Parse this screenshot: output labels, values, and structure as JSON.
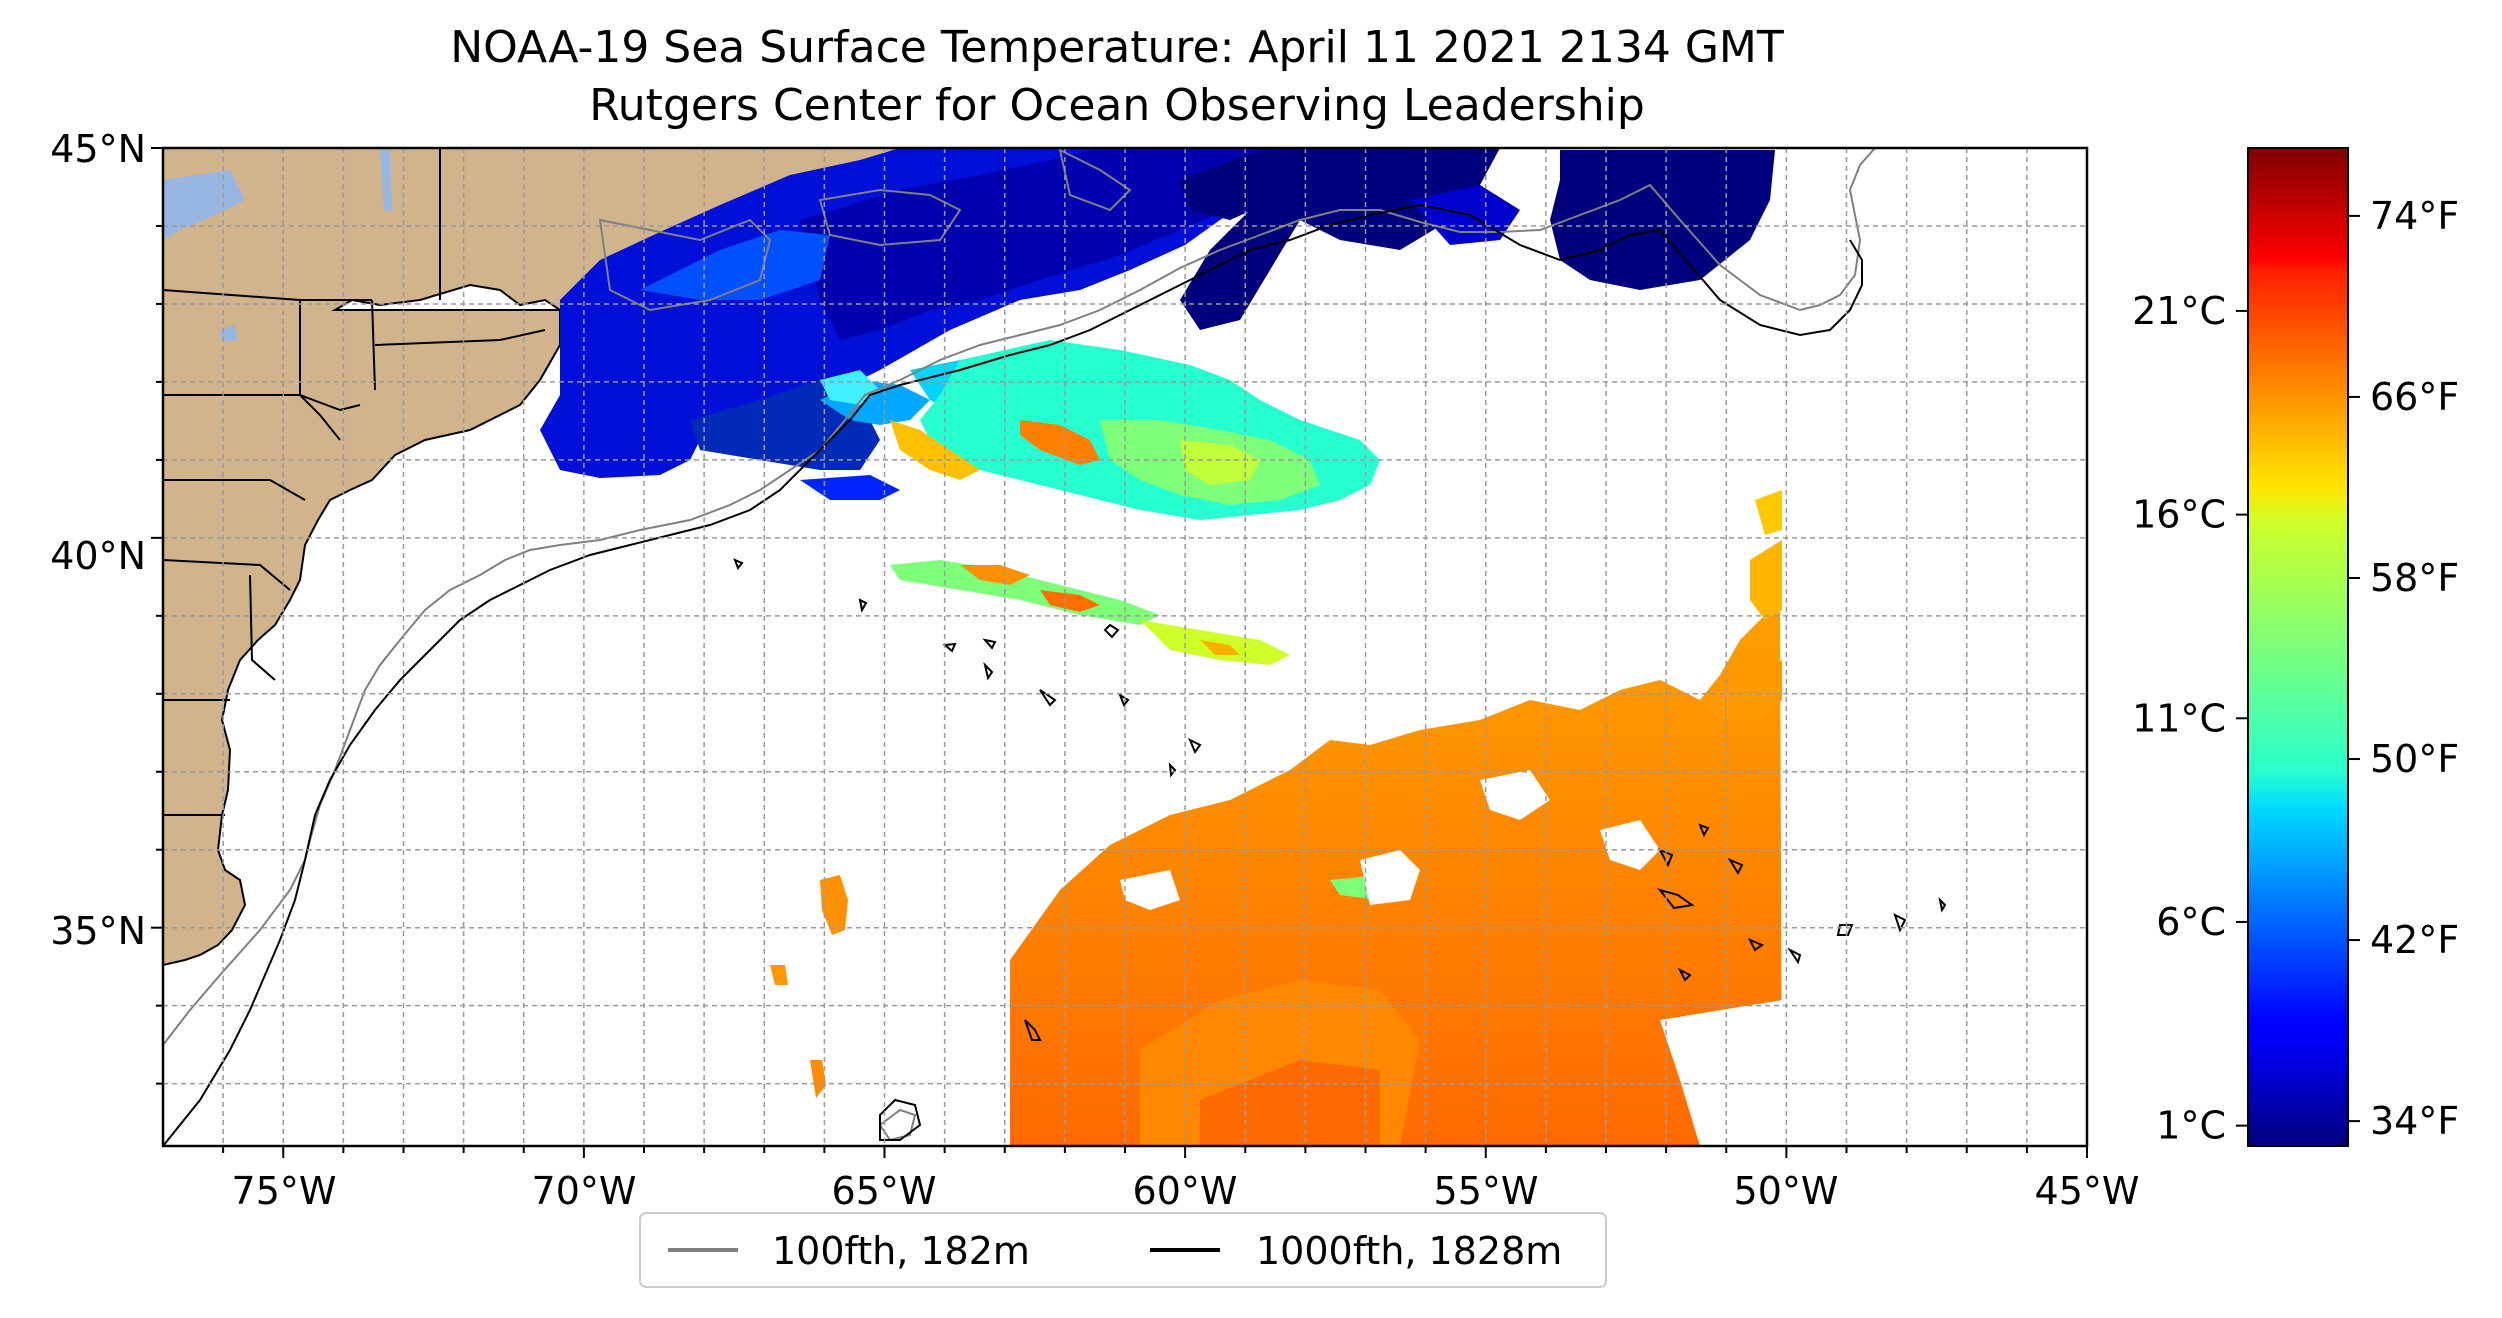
{
  "title_line1": "NOAA-19 Sea Surface Temperature: April 11 2021 2134 GMT",
  "title_line2": "Rutgers Center for Ocean Observing Leadership",
  "map": {
    "lon_range": [
      -77,
      -45
    ],
    "lat_range": [
      32.2,
      45
    ],
    "lon_ticks": [
      -75,
      -70,
      -65,
      -60,
      -55,
      -50,
      -45
    ],
    "lat_ticks": [
      35,
      40,
      45
    ],
    "lon_tick_labels": [
      "75°W",
      "70°W",
      "65°W",
      "60°W",
      "55°W",
      "50°W",
      "45°W"
    ],
    "lat_tick_labels": [
      "35°N",
      "40°N",
      "45°N"
    ],
    "gridlines": true,
    "land_color": "#d2b48c",
    "lake_color": "#97b6e1"
  },
  "legend": {
    "placement": "bottom-center",
    "items": [
      {
        "label": "100fth, 182m",
        "color": "#808080"
      },
      {
        "label": "1000fth, 1828m",
        "color": "#000000"
      }
    ]
  },
  "colorbar": {
    "colormap": "jet",
    "celsius_labels": [
      "1°C",
      "6°C",
      "11°C",
      "16°C",
      "21°C"
    ],
    "celsius_values": [
      1,
      6,
      11,
      16,
      21
    ],
    "fahrenheit_labels": [
      "34°F",
      "42°F",
      "50°F",
      "58°F",
      "66°F",
      "74°F"
    ],
    "fahrenheit_values": [
      34,
      42,
      50,
      58,
      66,
      74
    ],
    "range_celsius": [
      0.5,
      25
    ]
  }
}
